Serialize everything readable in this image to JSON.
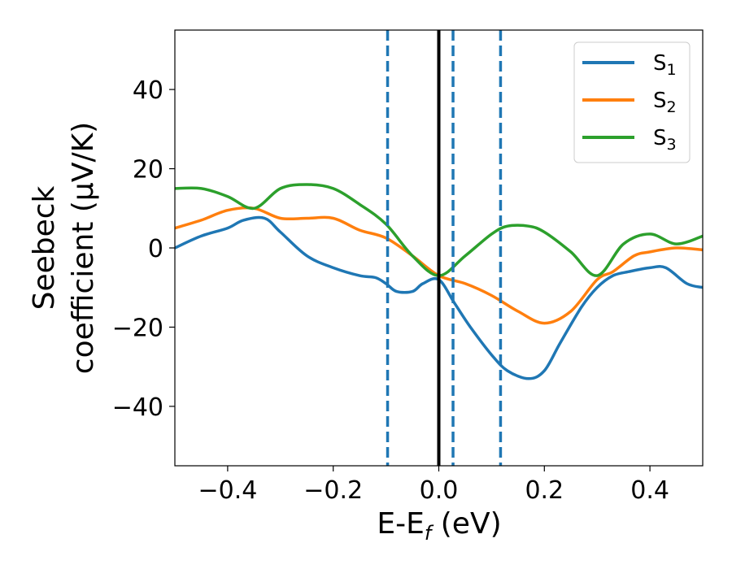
{
  "chart_data": {
    "type": "line",
    "xlabel": {
      "main": "E-E",
      "sub": "f",
      "unit": " (eV)"
    },
    "ylabel": {
      "line1": "Seebeck",
      "line2": "coefficient  (μV/K)"
    },
    "xlim": [
      -0.5,
      0.5
    ],
    "ylim": [
      -55,
      55
    ],
    "xticks": [
      -0.4,
      -0.2,
      0.0,
      0.2,
      0.4
    ],
    "xtick_labels": [
      "−0.4",
      "−0.2",
      "0.0",
      "0.2",
      "0.4"
    ],
    "yticks": [
      -40,
      -20,
      0,
      20,
      40
    ],
    "ytick_labels": [
      "−40",
      "−20",
      "0",
      "20",
      "40"
    ],
    "grid": false,
    "legend_position": "top-right",
    "series": [
      {
        "name": "S",
        "sub": "1",
        "color": "#1f77b4",
        "x": [
          -0.5,
          -0.45,
          -0.4,
          -0.37,
          -0.33,
          -0.3,
          -0.25,
          -0.2,
          -0.15,
          -0.12,
          -0.1,
          -0.08,
          -0.05,
          -0.03,
          0.0,
          0.03,
          0.06,
          0.1,
          0.13,
          0.17,
          0.2,
          0.23,
          0.27,
          0.3,
          0.33,
          0.36,
          0.4,
          0.43,
          0.47,
          0.5
        ],
        "values": [
          0,
          3,
          5,
          7,
          7.5,
          4,
          -2,
          -5,
          -7,
          -7.5,
          -9,
          -11,
          -11,
          -9,
          -8,
          -14,
          -20,
          -27,
          -31,
          -33,
          -31,
          -24,
          -15,
          -10,
          -7,
          -6,
          -5,
          -5,
          -9,
          -10
        ]
      },
      {
        "name": "S",
        "sub": "2",
        "color": "#ff7f0e",
        "x": [
          -0.5,
          -0.45,
          -0.4,
          -0.35,
          -0.3,
          -0.25,
          -0.2,
          -0.15,
          -0.1,
          -0.05,
          0.0,
          0.05,
          0.1,
          0.15,
          0.2,
          0.25,
          0.3,
          0.33,
          0.37,
          0.4,
          0.45,
          0.5
        ],
        "values": [
          5,
          7,
          9.5,
          10,
          7.5,
          7.5,
          7.5,
          4.5,
          2.5,
          -2,
          -7,
          -9,
          -12,
          -16,
          -19,
          -16,
          -8,
          -6,
          -2,
          -1,
          0,
          -0.5
        ]
      },
      {
        "name": "S",
        "sub": "3",
        "color": "#2ca02c",
        "x": [
          -0.5,
          -0.45,
          -0.4,
          -0.35,
          -0.3,
          -0.25,
          -0.2,
          -0.15,
          -0.1,
          -0.05,
          0.0,
          0.05,
          0.1,
          0.13,
          0.17,
          0.2,
          0.25,
          0.3,
          0.35,
          0.4,
          0.45,
          0.5
        ],
        "values": [
          15,
          15,
          13,
          10,
          15,
          16,
          15,
          11,
          6,
          -2,
          -7,
          -2,
          3.5,
          5.5,
          5.5,
          4,
          -1,
          -7,
          1,
          3.5,
          1,
          3
        ]
      }
    ],
    "vertical_lines": [
      {
        "x": -0.097,
        "style": "dashed",
        "color": "#1f77b4"
      },
      {
        "x": 0.0,
        "style": "solid",
        "color": "#000000"
      },
      {
        "x": 0.027,
        "style": "dashed",
        "color": "#1f77b4"
      },
      {
        "x": 0.117,
        "style": "dashed",
        "color": "#1f77b4"
      }
    ]
  }
}
